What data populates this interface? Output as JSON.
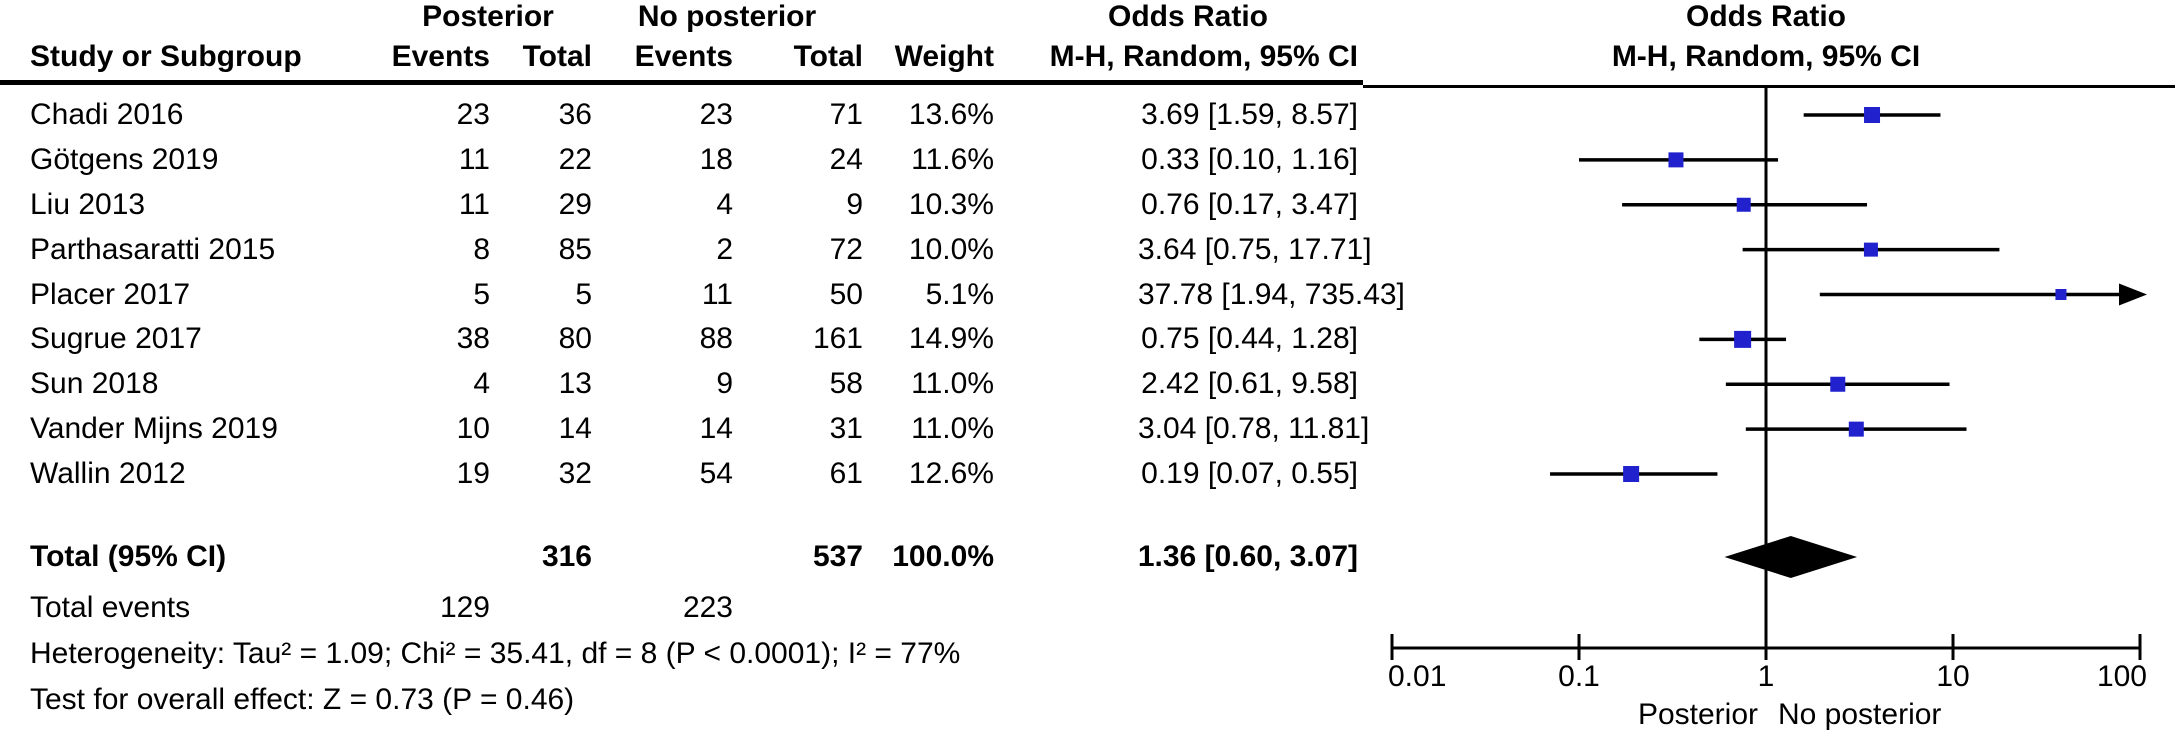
{
  "header": {
    "group1": "Posterior",
    "group2": "No posterior",
    "study_col": "Study or Subgroup",
    "events_col": "Events",
    "total_col": "Total",
    "weight_col": "Weight",
    "or_title": "Odds Ratio",
    "or_subtitle": "M-H, Random, 95% CI"
  },
  "chart_data": {
    "type": "forest",
    "effect_measure": "Odds Ratio",
    "method": "M-H, Random, 95% CI",
    "x_axis": {
      "scale": "log10",
      "ticks": [
        0.01,
        0.1,
        1,
        10,
        100
      ],
      "tick_labels": [
        "0.01",
        "0.1",
        "1",
        "10",
        "100"
      ],
      "left_label": "Posterior",
      "right_label": "No posterior"
    },
    "studies": [
      {
        "name": "Chadi 2016",
        "posterior_events": 23,
        "posterior_total": 36,
        "no_posterior_events": 23,
        "no_posterior_total": 71,
        "weight": "13.6%",
        "weight_value": 13.6,
        "or": 3.69,
        "ci_low": 1.59,
        "ci_high": 8.57,
        "or_label": "3.69 [1.59, 8.57]"
      },
      {
        "name": "Götgens 2019",
        "posterior_events": 11,
        "posterior_total": 22,
        "no_posterior_events": 18,
        "no_posterior_total": 24,
        "weight": "11.6%",
        "weight_value": 11.6,
        "or": 0.33,
        "ci_low": 0.1,
        "ci_high": 1.16,
        "or_label": "0.33 [0.10, 1.16]"
      },
      {
        "name": "Liu 2013",
        "posterior_events": 11,
        "posterior_total": 29,
        "no_posterior_events": 4,
        "no_posterior_total": 9,
        "weight": "10.3%",
        "weight_value": 10.3,
        "or": 0.76,
        "ci_low": 0.17,
        "ci_high": 3.47,
        "or_label": "0.76 [0.17, 3.47]"
      },
      {
        "name": "Parthasaratti 2015",
        "posterior_events": 8,
        "posterior_total": 85,
        "no_posterior_events": 2,
        "no_posterior_total": 72,
        "weight": "10.0%",
        "weight_value": 10.0,
        "or": 3.64,
        "ci_low": 0.75,
        "ci_high": 17.71,
        "or_label": "3.64 [0.75, 17.71]"
      },
      {
        "name": "Placer 2017",
        "posterior_events": 5,
        "posterior_total": 5,
        "no_posterior_events": 11,
        "no_posterior_total": 50,
        "weight": "5.1%",
        "weight_value": 5.1,
        "or": 37.78,
        "ci_low": 1.94,
        "ci_high": 735.43,
        "or_label": "37.78 [1.94, 735.43]"
      },
      {
        "name": "Sugrue 2017",
        "posterior_events": 38,
        "posterior_total": 80,
        "no_posterior_events": 88,
        "no_posterior_total": 161,
        "weight": "14.9%",
        "weight_value": 14.9,
        "or": 0.75,
        "ci_low": 0.44,
        "ci_high": 1.28,
        "or_label": "0.75 [0.44, 1.28]"
      },
      {
        "name": "Sun 2018",
        "posterior_events": 4,
        "posterior_total": 13,
        "no_posterior_events": 9,
        "no_posterior_total": 58,
        "weight": "11.0%",
        "weight_value": 11.0,
        "or": 2.42,
        "ci_low": 0.61,
        "ci_high": 9.58,
        "or_label": "2.42 [0.61, 9.58]"
      },
      {
        "name": "Vander Mijns 2019",
        "posterior_events": 10,
        "posterior_total": 14,
        "no_posterior_events": 14,
        "no_posterior_total": 31,
        "weight": "11.0%",
        "weight_value": 11.0,
        "or": 3.04,
        "ci_low": 0.78,
        "ci_high": 11.81,
        "or_label": "3.04 [0.78, 11.81]"
      },
      {
        "name": "Wallin 2012",
        "posterior_events": 19,
        "posterior_total": 32,
        "no_posterior_events": 54,
        "no_posterior_total": 61,
        "weight": "12.6%",
        "weight_value": 12.6,
        "or": 0.19,
        "ci_low": 0.07,
        "ci_high": 0.55,
        "or_label": "0.19 [0.07, 0.55]"
      }
    ],
    "total": {
      "label": "Total (95% CI)",
      "posterior_total": 316,
      "no_posterior_total": 537,
      "weight": "100.0%",
      "or": 1.36,
      "ci_low": 0.6,
      "ci_high": 3.07,
      "or_label": "1.36 [0.60, 3.07]"
    },
    "total_events": {
      "label": "Total events",
      "posterior_events": 129,
      "no_posterior_events": 223
    },
    "heterogeneity": "Heterogeneity: Tau² = 1.09; Chi² = 35.41, df = 8 (P < 0.0001); I² = 77%",
    "overall_effect": "Test for overall effect: Z = 0.73 (P = 0.46)",
    "marker_color": "#2121CE",
    "line_color": "#000000"
  }
}
